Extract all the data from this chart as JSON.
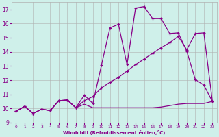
{
  "xlabel": "Windchill (Refroidissement éolien,°C)",
  "background_color": "#cff0ea",
  "grid_color": "#b0b0b0",
  "line_color": "#880088",
  "xlim": [
    -0.5,
    23.5
  ],
  "ylim": [
    9,
    17.5
  ],
  "yticks": [
    9,
    10,
    11,
    12,
    13,
    14,
    15,
    16,
    17
  ],
  "xticks": [
    0,
    1,
    2,
    3,
    4,
    5,
    6,
    7,
    8,
    9,
    10,
    11,
    12,
    13,
    14,
    15,
    16,
    17,
    18,
    19,
    20,
    21,
    22,
    23
  ],
  "series1_x": [
    0,
    1,
    2,
    3,
    4,
    5,
    6,
    7,
    8,
    9,
    10,
    11,
    12,
    13,
    14,
    15,
    16,
    17,
    18,
    19,
    20,
    21,
    22,
    23
  ],
  "series1_y": [
    9.8,
    10.15,
    9.65,
    9.95,
    9.85,
    10.55,
    10.6,
    10.05,
    10.3,
    10.05,
    10.05,
    10.05,
    10.05,
    10.05,
    10.05,
    10.05,
    10.05,
    10.1,
    10.2,
    10.3,
    10.35,
    10.35,
    10.35,
    10.5
  ],
  "series2_x": [
    0,
    1,
    2,
    3,
    4,
    5,
    6,
    7,
    8,
    9,
    10,
    11,
    12,
    13,
    14,
    15,
    16,
    17,
    18,
    19,
    20,
    21,
    22,
    23
  ],
  "series2_y": [
    9.8,
    10.15,
    9.65,
    9.95,
    9.85,
    10.55,
    10.6,
    10.05,
    10.55,
    10.85,
    11.45,
    11.85,
    12.2,
    12.65,
    13.1,
    13.5,
    13.9,
    14.3,
    14.65,
    15.1,
    14.15,
    15.3,
    15.35,
    10.5
  ],
  "series3_x": [
    0,
    1,
    2,
    3,
    4,
    5,
    6,
    7,
    8,
    9,
    10,
    11,
    12,
    13,
    14,
    15,
    16,
    17,
    18,
    19,
    20,
    21,
    22,
    23
  ],
  "series3_y": [
    9.8,
    10.15,
    9.65,
    9.95,
    9.85,
    10.55,
    10.6,
    10.05,
    10.95,
    10.35,
    13.05,
    15.7,
    15.95,
    13.1,
    17.1,
    17.2,
    16.35,
    16.35,
    15.3,
    15.35,
    14.05,
    12.05,
    11.65,
    10.5
  ]
}
